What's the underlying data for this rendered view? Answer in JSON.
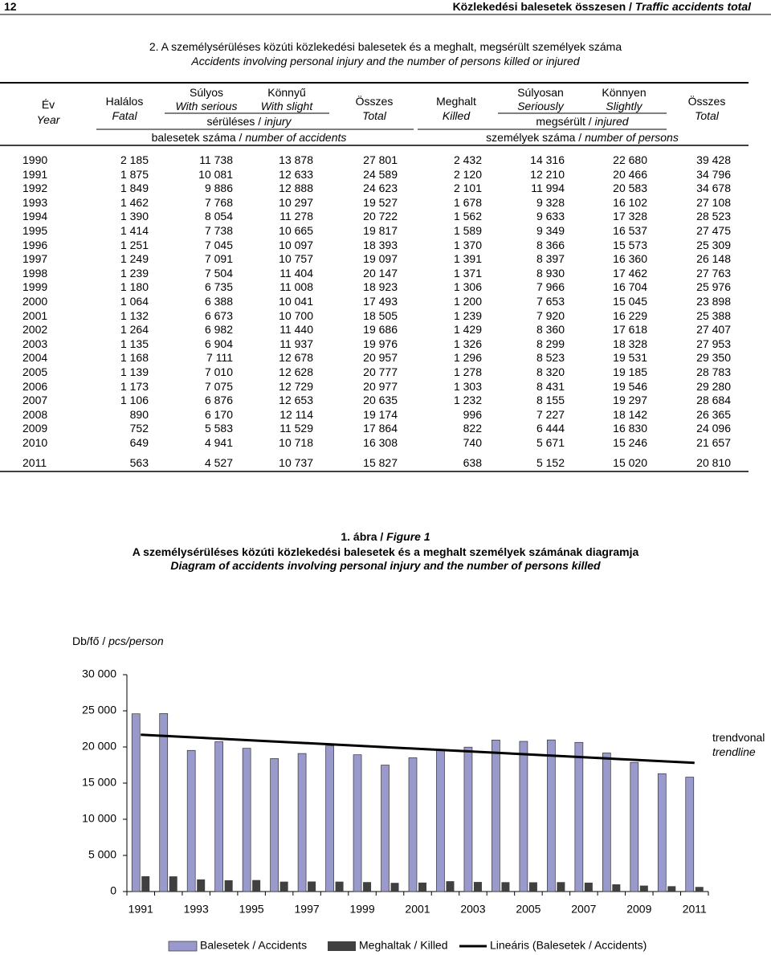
{
  "header": {
    "page": "12",
    "title": "Közlekedési balesetek összesen /",
    "title_en": "Traffic accidents total"
  },
  "table": {
    "title": "2. A személysérüléses közúti közlekedési balesetek és a meghalt, megsérült személyek száma",
    "subtitle": "Accidents involving personal injury and the number of persons killed or injured",
    "columns": [
      {
        "hu": "Év",
        "en": "Year"
      },
      {
        "hu": "Halálos",
        "en": "Fatal"
      },
      {
        "hu": "Súlyos",
        "en": "With serious"
      },
      {
        "hu": "Könnyű",
        "en": "With slight"
      },
      {
        "hu": "Összes",
        "en": "Total"
      },
      {
        "hu": "Meghalt",
        "en": "Killed"
      },
      {
        "hu": "Súlyosan",
        "en": "Seriously"
      },
      {
        "hu": "Könnyen",
        "en": "Slightly"
      },
      {
        "hu": "Összes",
        "en": "Total"
      }
    ],
    "injury_group": {
      "hu": "sérüléses /",
      "en": "injury"
    },
    "injured_group": {
      "hu": "megsérült /",
      "en": "injured"
    },
    "accidents_group": {
      "hu": "balesetek száma /",
      "en": "number of accidents"
    },
    "persons_group": {
      "hu": "személyek száma /",
      "en": "number of persons"
    },
    "rows": [
      [
        "1990",
        "2 185",
        "11 738",
        "13 878",
        "27 801",
        "2 432",
        "14 316",
        "22 680",
        "39 428"
      ],
      [
        "1991",
        "1 875",
        "10 081",
        "12 633",
        "24 589",
        "2 120",
        "12 210",
        "20 466",
        "34 796"
      ],
      [
        "1992",
        "1 849",
        "9 886",
        "12 888",
        "24 623",
        "2 101",
        "11 994",
        "20 583",
        "34 678"
      ],
      [
        "1993",
        "1 462",
        "7 768",
        "10 297",
        "19 527",
        "1 678",
        "9 328",
        "16 102",
        "27 108"
      ],
      [
        "1994",
        "1 390",
        "8 054",
        "11 278",
        "20 722",
        "1 562",
        "9 633",
        "17 328",
        "28 523"
      ],
      [
        "1995",
        "1 414",
        "7 738",
        "10 665",
        "19 817",
        "1 589",
        "9 349",
        "16 537",
        "27 475"
      ],
      [
        "1996",
        "1 251",
        "7 045",
        "10 097",
        "18 393",
        "1 370",
        "8 366",
        "15 573",
        "25 309"
      ],
      [
        "1997",
        "1 249",
        "7 091",
        "10 757",
        "19 097",
        "1 391",
        "8 397",
        "16 360",
        "26 148"
      ],
      [
        "1998",
        "1 239",
        "7 504",
        "11 404",
        "20 147",
        "1 371",
        "8 930",
        "17 462",
        "27 763"
      ],
      [
        "1999",
        "1 180",
        "6 735",
        "11 008",
        "18 923",
        "1 306",
        "7 966",
        "16 704",
        "25 976"
      ],
      [
        "2000",
        "1 064",
        "6 388",
        "10 041",
        "17 493",
        "1 200",
        "7 653",
        "15 045",
        "23 898"
      ],
      [
        "2001",
        "1 132",
        "6 673",
        "10 700",
        "18 505",
        "1 239",
        "7 920",
        "16 229",
        "25 388"
      ],
      [
        "2002",
        "1 264",
        "6 982",
        "11 440",
        "19 686",
        "1 429",
        "8 360",
        "17 618",
        "27 407"
      ],
      [
        "2003",
        "1 135",
        "6 904",
        "11 937",
        "19 976",
        "1 326",
        "8 299",
        "18 328",
        "27 953"
      ],
      [
        "2004",
        "1 168",
        "7 111",
        "12 678",
        "20 957",
        "1 296",
        "8 523",
        "19 531",
        "29 350"
      ],
      [
        "2005",
        "1 139",
        "7 010",
        "12 628",
        "20 777",
        "1 278",
        "8 320",
        "19 185",
        "28 783"
      ],
      [
        "2006",
        "1 173",
        "7 075",
        "12 729",
        "20 977",
        "1 303",
        "8 431",
        "19 546",
        "29 280"
      ],
      [
        "2007",
        "1 106",
        "6 876",
        "12 653",
        "20 635",
        "1 232",
        "8 155",
        "19 297",
        "28 684"
      ],
      [
        "2008",
        "890",
        "6 170",
        "12 114",
        "19 174",
        "996",
        "7 227",
        "18 142",
        "26 365"
      ],
      [
        "2009",
        "752",
        "5 583",
        "11 529",
        "17 864",
        "822",
        "6 444",
        "16 830",
        "24 096"
      ],
      [
        "2010",
        "649",
        "4 941",
        "10 718",
        "16 308",
        "740",
        "5 671",
        "15 246",
        "21 657"
      ],
      [
        "2011",
        "563",
        "4 527",
        "10 737",
        "15 827",
        "638",
        "5 152",
        "15 020",
        "20 810"
      ]
    ]
  },
  "figure": {
    "number": "1. ábra /",
    "number_en": "Figure 1",
    "title": "A személysérüléses közúti közlekedési balesetek és a meghalt személyek számának diagramja",
    "subtitle": "Diagram of accidents involving personal injury and the number of persons killed"
  },
  "chart_data": {
    "type": "bar",
    "y_label": "Db/fő /",
    "y_label_en": "pcs/person",
    "categories": [
      "1991",
      null,
      "1993",
      null,
      "1995",
      null,
      "1997",
      null,
      "1999",
      null,
      "2001",
      null,
      "2003",
      null,
      "2005",
      null,
      "2007",
      null,
      "2009",
      null,
      "2011"
    ],
    "series": [
      {
        "name": "Balesetek / Accidents",
        "color": "#9999cc",
        "values": [
          24589,
          24623,
          19527,
          20722,
          19817,
          18393,
          19097,
          20147,
          18923,
          17493,
          18505,
          19686,
          19976,
          20957,
          20777,
          20977,
          20635,
          19174,
          17864,
          16308,
          15827
        ]
      },
      {
        "name": "Meghaltak / Killed",
        "color": "#404040",
        "values": [
          2120,
          2101,
          1678,
          1562,
          1589,
          1370,
          1391,
          1371,
          1306,
          1200,
          1239,
          1429,
          1326,
          1296,
          1278,
          1303,
          1232,
          996,
          822,
          740,
          638
        ]
      }
    ],
    "trendline": {
      "name": "Lineáris (Balesetek / Accidents)",
      "color": "#000000",
      "values": [
        21700,
        17800
      ],
      "annotation": "trendvonal",
      "annotation_en": "trendline"
    },
    "ylim": [
      0,
      30000
    ],
    "yticks": [
      0,
      {
        "value": 5000,
        "label": "5 000"
      },
      {
        "value": 10000,
        "label": "10 000"
      },
      {
        "value": 15000,
        "label": "15 000"
      },
      {
        "value": 20000,
        "label": "20 000"
      },
      {
        "value": 25000,
        "label": "25 000"
      },
      {
        "value": 30000,
        "label": "30 000"
      }
    ]
  }
}
